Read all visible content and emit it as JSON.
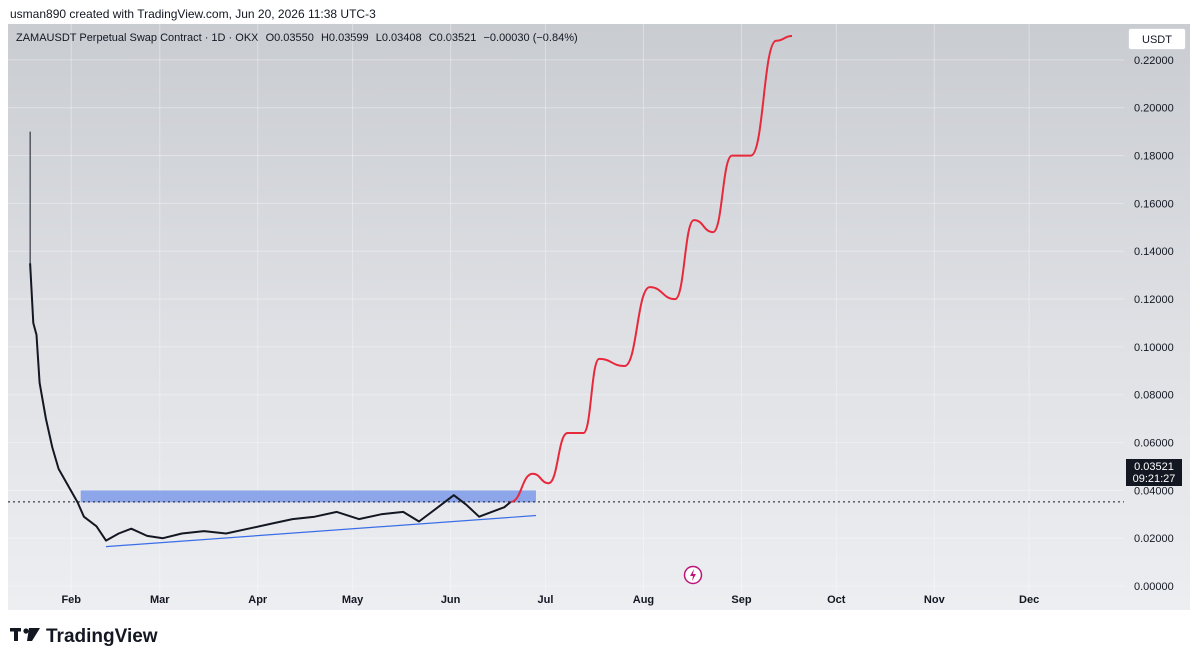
{
  "header": {
    "attribution": "usman890 created with TradingView.com, Jun 20, 2026 11:38 UTC-3"
  },
  "legend": {
    "symbol": "ZAMAUSDT Perpetual Swap Contract · 1D · OKX",
    "open": "O0.03550",
    "high": "H0.03599",
    "low": "L0.03408",
    "close": "C0.03521",
    "change": "−0.00030 (−0.84%)"
  },
  "currency_button": "USDT",
  "last_price": {
    "price": "0.03521",
    "countdown": "09:21:27"
  },
  "footer": {
    "brand": "TradingView"
  },
  "colors": {
    "actual_price": "#131722",
    "projection": "#e8283b",
    "zone": "#6f8fe8",
    "trendline": "#3a6ee8"
  },
  "chart_data": {
    "type": "line",
    "y_ticks": [
      "0.22000",
      "0.20000",
      "0.18000",
      "0.16000",
      "0.14000",
      "0.12000",
      "0.10000",
      "0.08000",
      "0.06000",
      "0.04000",
      "0.02000",
      "0.00000"
    ],
    "ylim": [
      -0.01,
      0.235
    ],
    "x_ticks": [
      "Feb",
      "Mar",
      "Apr",
      "May",
      "Jun",
      "Jul",
      "Aug",
      "Sep",
      "Oct",
      "Nov",
      "Dec"
    ],
    "xlim": [
      "2026-01-12",
      "2026-12-31"
    ],
    "last_price": 0.03521,
    "series": [
      {
        "x": [
          "2026-01-19",
          "2026-01-20",
          "2026-01-21",
          "2026-01-22",
          "2026-01-24",
          "2026-01-26",
          "2026-01-28",
          "2026-01-31",
          "2026-02-03",
          "2026-02-05",
          "2026-02-09",
          "2026-02-12",
          "2026-02-16",
          "2026-02-20",
          "2026-02-25",
          "2026-03-02",
          "2026-03-08",
          "2026-03-15",
          "2026-03-22",
          "2026-03-29",
          "2026-04-05",
          "2026-04-12",
          "2026-04-19",
          "2026-04-26",
          "2026-05-03",
          "2026-05-10",
          "2026-05-17",
          "2026-05-22",
          "2026-05-28",
          "2026-06-02",
          "2026-06-06",
          "2026-06-10",
          "2026-06-14",
          "2026-06-18",
          "2026-06-20"
        ],
        "values": [
          0.135,
          0.11,
          0.105,
          0.085,
          0.07,
          0.058,
          0.049,
          0.042,
          0.035,
          0.029,
          0.025,
          0.019,
          0.022,
          0.024,
          0.021,
          0.02,
          0.022,
          0.023,
          0.022,
          0.024,
          0.026,
          0.028,
          0.029,
          0.031,
          0.028,
          0.03,
          0.031,
          0.027,
          0.033,
          0.038,
          0.034,
          0.029,
          0.031,
          0.033,
          0.0352
        ],
        "high": 0.19
      },
      {
        "x": [
          "2026-06-20",
          "2026-06-27",
          "2026-07-02",
          "2026-07-08",
          "2026-07-13",
          "2026-07-18",
          "2026-07-26",
          "2026-08-03",
          "2026-08-11",
          "2026-08-17",
          "2026-08-23",
          "2026-08-29",
          "2026-09-04",
          "2026-09-12",
          "2026-09-17"
        ],
        "values": [
          0.0352,
          0.047,
          0.043,
          0.064,
          0.064,
          0.095,
          0.092,
          0.125,
          0.12,
          0.153,
          0.148,
          0.18,
          0.18,
          0.228,
          0.23
        ]
      }
    ],
    "price_zone": {
      "from": "2026-02-04",
      "to": "2026-06-28",
      "low": 0.035,
      "high": 0.04
    },
    "trendline": {
      "from": {
        "x": "2026-02-12",
        "y": 0.0165
      },
      "to": {
        "x": "2026-06-28",
        "y": 0.0295
      }
    }
  }
}
